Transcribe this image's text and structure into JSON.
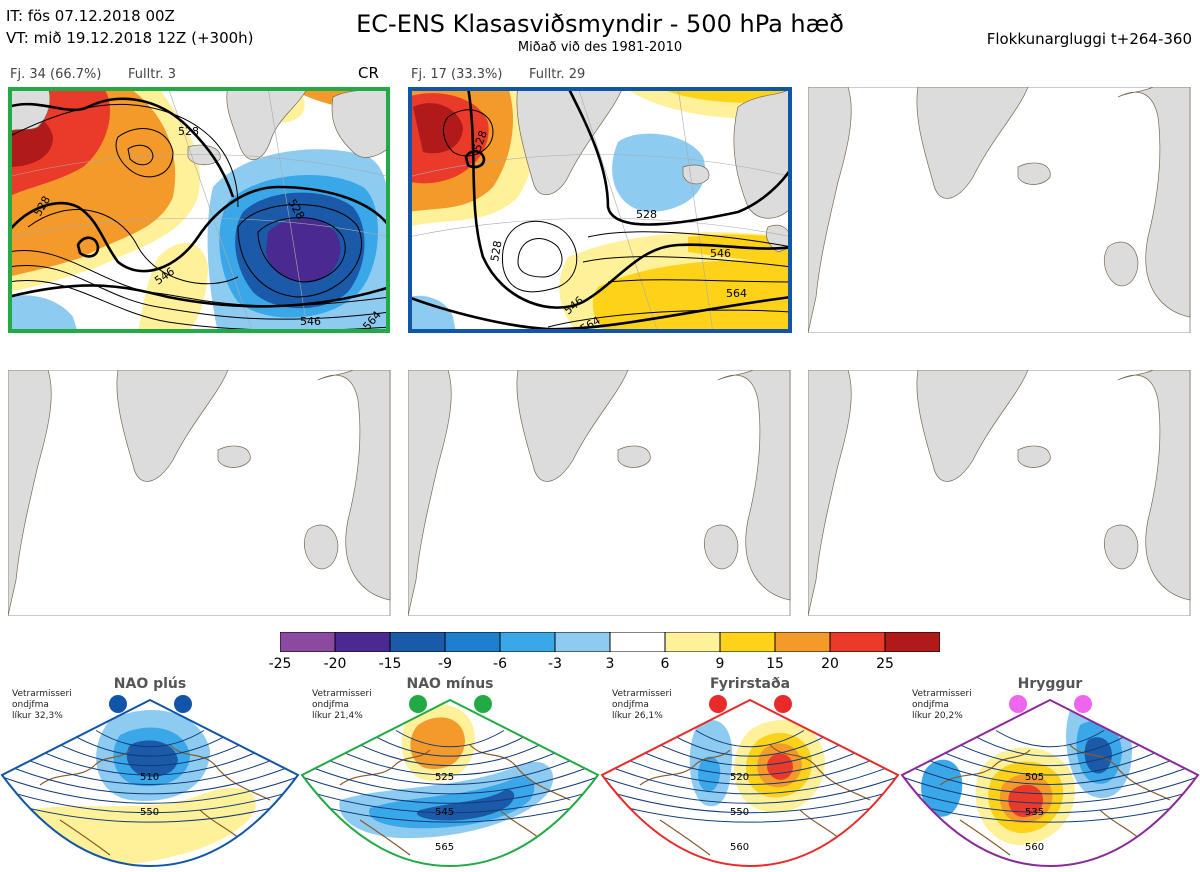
{
  "header": {
    "init_time": "IT: fös 07.12.2018 00Z",
    "valid_time": "VT: mið 19.12.2018 12Z  (+300h)",
    "title": "EC-ENS Klasasviðsmyndir - 500 hPa hæð",
    "subtitle": "Miðað við des 1981-2010",
    "window": "Flokkunargluggi t+264-360"
  },
  "clusters": [
    {
      "members": "Fj. 34 (66.7%)",
      "representative": "Fulltr. 3",
      "regime_code": "CR",
      "border_color": "#22aa44",
      "contour_labels": [
        "528",
        "528",
        "528",
        "546",
        "546",
        "564"
      ]
    },
    {
      "members": "Fj. 17 (33.3%)",
      "representative": "Fulltr. 29",
      "regime_code": "",
      "border_color": "#1155a8",
      "contour_labels": [
        "528",
        "528",
        "528",
        "546",
        "546",
        "564",
        "564"
      ]
    }
  ],
  "colorbar": {
    "colors": [
      "#8b4aa0",
      "#4a2a90",
      "#1a5aa8",
      "#1e7fd0",
      "#3aa8e8",
      "#8ecbf0",
      "#ffffff",
      "#fff19a",
      "#ffd21a",
      "#f39a2a",
      "#ea3a2a",
      "#b01a1a"
    ],
    "ticks": [
      "-25",
      "-20",
      "-15",
      "-9",
      "-6",
      "-3",
      "3",
      "6",
      "9",
      "15",
      "20",
      "25"
    ]
  },
  "regimes": [
    {
      "name": "NAO plús",
      "stat_lines": [
        "Vetrarmisseri",
        "ondjfma",
        "líkur 32,3%"
      ],
      "color": "#1155a8",
      "contour_labels": [
        "510",
        "550"
      ]
    },
    {
      "name": "NAO mínus",
      "stat_lines": [
        "Vetrarmisseri",
        "ondjfma",
        "líkur 21,4%"
      ],
      "color": "#22aa44",
      "contour_labels": [
        "525",
        "545",
        "565"
      ]
    },
    {
      "name": "Fyrirstaða",
      "stat_lines": [
        "Vetrarmisseri",
        "ondjfma",
        "líkur 26,1%"
      ],
      "color": "#e82a2a",
      "contour_labels": [
        "520",
        "550",
        "560"
      ]
    },
    {
      "name": "Hryggur",
      "stat_lines": [
        "Vetrarmisseri",
        "ondjfma",
        "líkur 20,2%"
      ],
      "color": "#8a2a9a",
      "contour_labels": [
        "505",
        "535",
        "560"
      ]
    }
  ]
}
